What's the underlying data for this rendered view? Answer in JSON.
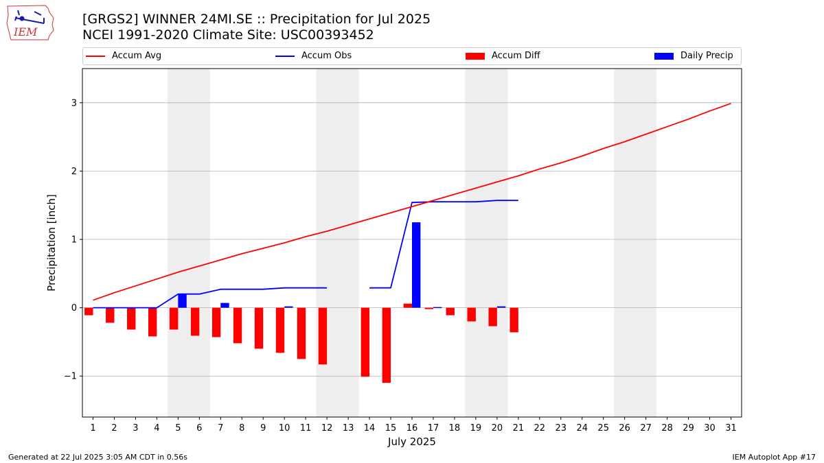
{
  "header": {
    "title_line1": "[GRGS2] WINNER 24MI.SE :: Precipitation for Jul 2025",
    "title_line2": "NCEI 1991-2020 Climate Site: USC00393452",
    "logo_text": "IEM"
  },
  "legend": {
    "accum_avg": "Accum Avg",
    "accum_obs": "Accum Obs",
    "accum_diff": "Accum Diff",
    "daily_precip": "Daily Precip"
  },
  "colors": {
    "avg": "#ff0000",
    "obs": "#0000ff",
    "diff": "#ff0000",
    "daily": "#0000ff",
    "weekend": "#eeeeee",
    "grid": "#b0b0b0"
  },
  "footer": {
    "left": "Generated at 22 Jul 2025 3:05 AM CDT in 0.56s",
    "right": "IEM Autoplot App #17"
  },
  "chart_data": {
    "type": "bar",
    "xlabel": "July 2025",
    "ylabel": "Precipitation [inch]",
    "xlim": [
      0.5,
      31.5
    ],
    "ylim": [
      -1.6,
      3.5
    ],
    "yticks": [
      -1,
      0,
      1,
      2,
      3
    ],
    "ytick_labels": [
      "−1",
      "0",
      "1",
      "2",
      "3"
    ],
    "grid": true,
    "legend_position": "top",
    "categories": [
      1,
      2,
      3,
      4,
      5,
      6,
      7,
      8,
      9,
      10,
      11,
      12,
      13,
      14,
      15,
      16,
      17,
      18,
      19,
      20,
      21,
      22,
      23,
      24,
      25,
      26,
      27,
      28,
      29,
      30,
      31
    ],
    "weekend_spans": [
      [
        4.5,
        6.5
      ],
      [
        11.5,
        13.5
      ],
      [
        18.5,
        20.5
      ],
      [
        25.5,
        27.5
      ]
    ],
    "series": [
      {
        "name": "Accum Avg",
        "kind": "line",
        "values": [
          0.11,
          0.22,
          0.32,
          0.42,
          0.52,
          0.61,
          0.7,
          0.79,
          0.87,
          0.95,
          1.04,
          1.12,
          1.21,
          1.3,
          1.39,
          1.48,
          1.57,
          1.66,
          1.75,
          1.84,
          1.93,
          2.03,
          2.12,
          2.22,
          2.33,
          2.43,
          2.54,
          2.65,
          2.76,
          2.88,
          2.99
        ]
      },
      {
        "name": "Accum Obs",
        "kind": "line",
        "values": [
          0.0,
          0.0,
          0.0,
          0.0,
          0.2,
          0.2,
          0.27,
          0.27,
          0.27,
          0.29,
          0.29,
          0.29,
          null,
          0.29,
          0.29,
          1.54,
          1.55,
          1.55,
          1.55,
          1.57,
          1.57,
          null,
          null,
          null,
          null,
          null,
          null,
          null,
          null,
          null,
          null
        ]
      },
      {
        "name": "Accum Diff",
        "kind": "bar",
        "values": [
          -0.11,
          -0.22,
          -0.32,
          -0.42,
          -0.32,
          -0.41,
          -0.43,
          -0.52,
          -0.6,
          -0.66,
          -0.75,
          -0.83,
          null,
          -1.01,
          -1.1,
          0.06,
          -0.02,
          -0.11,
          -0.2,
          -0.27,
          -0.36,
          null,
          null,
          null,
          null,
          null,
          null,
          null,
          null,
          null,
          null
        ]
      },
      {
        "name": "Daily Precip",
        "kind": "bar",
        "values": [
          0.0,
          0.0,
          0.0,
          0.0,
          0.2,
          0.0,
          0.07,
          0.0,
          0.0,
          0.02,
          0.0,
          0.0,
          null,
          0.0,
          0.0,
          1.25,
          0.01,
          0.0,
          0.0,
          0.02,
          0.0,
          null,
          null,
          null,
          null,
          null,
          null,
          null,
          null,
          null,
          null
        ]
      }
    ]
  }
}
